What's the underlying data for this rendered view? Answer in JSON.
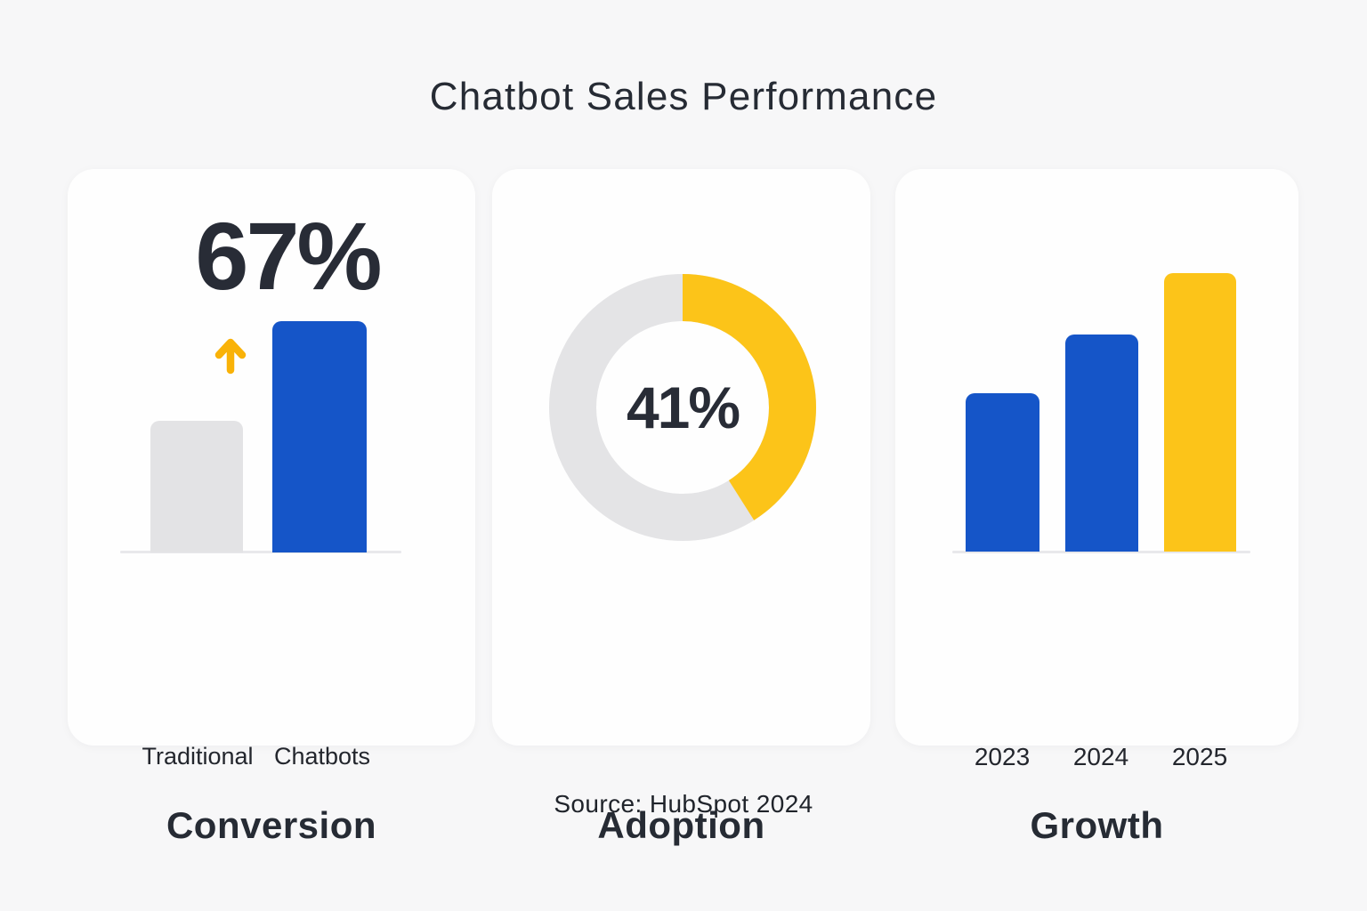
{
  "page": {
    "title": "Chatbot Sales Performance",
    "source": "Source: HubSpot 2024",
    "background": "#F7F7F8"
  },
  "colors": {
    "card_bg": "#FEFEFE",
    "blue": "#1555C8",
    "yellow": "#FCC419",
    "arrow_yellow": "#F9B208",
    "gray_bar": "#E3E3E5",
    "donut_track": "#E4E4E6",
    "axis_line": "#E8E8EB",
    "text_dark": "#262B34"
  },
  "cards": {
    "conversion": {
      "headline": "67%",
      "label": "Conversion",
      "categories": [
        "Traditional",
        "Chatbots"
      ]
    },
    "adoption": {
      "value_label": "41%",
      "label": "Adoption"
    },
    "growth": {
      "label": "Growth",
      "years": [
        "2023",
        "2024",
        "2025"
      ]
    }
  },
  "chart_data": [
    {
      "type": "bar",
      "title": "Conversion",
      "categories": [
        "Traditional",
        "Chatbots"
      ],
      "values": [
        57,
        100
      ],
      "ylabel": "relative bar height % (estimated, Chatbots bar = 100)",
      "annotations": [
        "67%",
        "yellow up arrow above Traditional bar"
      ],
      "colors": [
        "#E3E3E5",
        "#1555C8"
      ],
      "grid": false,
      "legend": false
    },
    {
      "type": "pie",
      "title": "Adoption",
      "donut": true,
      "value": 41,
      "center_label": "41%",
      "segments": [
        {
          "name": "adopted",
          "value": 41,
          "color": "#FCC419"
        },
        {
          "name": "remainder",
          "value": 59,
          "color": "#E4E4E6"
        }
      ],
      "start": "12 o'clock, clockwise",
      "grid": false,
      "legend": false
    },
    {
      "type": "bar",
      "title": "Growth",
      "categories": [
        "2023",
        "2024",
        "2025"
      ],
      "values": [
        57,
        78,
        100
      ],
      "ylabel": "relative bar height % (estimated, 2025 bar = 100)",
      "colors": [
        "#1555C8",
        "#1555C8",
        "#FCC419"
      ],
      "grid": false,
      "legend": false
    }
  ]
}
